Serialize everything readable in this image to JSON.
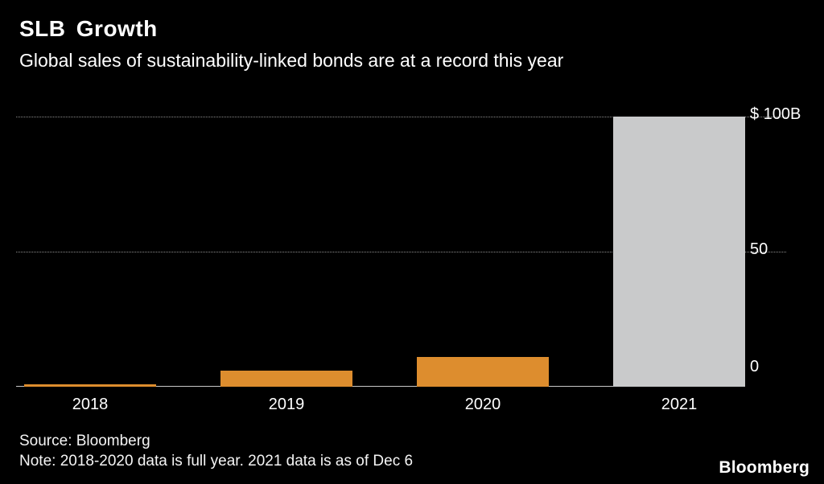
{
  "header": {
    "title": "SLB Growth",
    "subtitle": "Global sales of sustainability-linked bonds are at a record this year"
  },
  "footer": {
    "source": "Source: Bloomberg",
    "note": "Note: 2018-2020 data is full year. 2021 data is as of Dec 6",
    "logo": "Bloomberg"
  },
  "chart_data": {
    "type": "bar",
    "title": "SLB Growth",
    "subtitle": "Global sales of sustainability-linked bonds are at a record this year",
    "categories": [
      "2018",
      "2019",
      "2020",
      "2021"
    ],
    "values": [
      1,
      6,
      11,
      100
    ],
    "unit": "USD billions",
    "bar_colors": [
      "#DD8D2E",
      "#DD8D2E",
      "#DD8D2E",
      "#C9CACB"
    ],
    "xlabel": "",
    "ylabel": "",
    "ylim": [
      0,
      100
    ],
    "yticks": [
      {
        "value": 100,
        "label": "$ 100B"
      },
      {
        "value": 50,
        "label": "50"
      },
      {
        "value": 0,
        "label": "0"
      }
    ],
    "grid": "horizontal dotted gridlines at 50 and 100, solid baseline at 0",
    "legend": "none",
    "background": "#000000"
  },
  "colors": {
    "background": "#000000",
    "text": "#ffffff",
    "gridline": "#8f8f8f",
    "axis_line": "#c8c8c8",
    "bar_orange": "#DD8D2E",
    "bar_gray": "#C9CACB"
  }
}
